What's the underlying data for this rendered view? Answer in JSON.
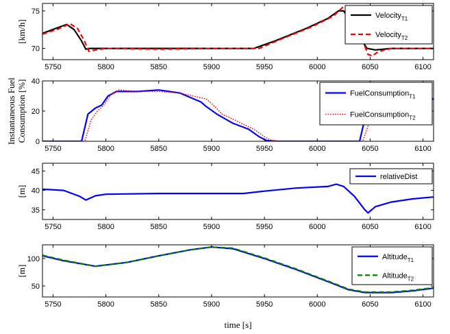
{
  "chart_data": [
    {
      "type": "line",
      "ylabel": "[km/h]",
      "xlabel": "",
      "xlim": [
        5740,
        6110
      ],
      "ylim": [
        68.5,
        76
      ],
      "xticks": [
        5750,
        5800,
        5850,
        5900,
        5950,
        6000,
        6050,
        6100
      ],
      "yticks": [
        70,
        75
      ],
      "legend_position": "top-right",
      "series": [
        {
          "name": "Velocity",
          "name_sub": "T1",
          "color": "#000000",
          "dash": "solid",
          "x": [
            5740,
            5755,
            5763,
            5770,
            5777,
            5781,
            5785,
            5800,
            5850,
            5900,
            5940,
            5960,
            5990,
            6010,
            6020,
            6025,
            6032,
            6040,
            6047,
            6055,
            6070,
            6110
          ],
          "y": [
            72.0,
            72.8,
            73.2,
            72.5,
            71.0,
            69.9,
            70.0,
            70.0,
            70.0,
            70.0,
            70.0,
            71.0,
            72.7,
            74.0,
            75.0,
            75.0,
            73.5,
            71.5,
            70.0,
            69.8,
            70.0,
            70.0
          ]
        },
        {
          "name": "Velocity",
          "name_sub": "T2",
          "color": "#ff0000",
          "dash": "dashed",
          "x": [
            5740,
            5755,
            5766,
            5773,
            5779,
            5784,
            5790,
            5800,
            5850,
            5900,
            5945,
            5965,
            5995,
            6015,
            6025,
            6028,
            6035,
            6043,
            6048,
            6052,
            6058,
            6070,
            6110
          ],
          "y": [
            71.9,
            72.6,
            73.3,
            72.7,
            71.2,
            69.6,
            69.8,
            70.0,
            69.9,
            70.0,
            70.0,
            71.2,
            72.9,
            74.3,
            75.6,
            75.6,
            74.0,
            71.0,
            69.2,
            69.0,
            69.6,
            70.0,
            70.0
          ]
        }
      ]
    },
    {
      "type": "line",
      "ylabel": "Instantaneous Fuel\nConsumption [%]",
      "xlabel": "",
      "xlim": [
        5740,
        6110
      ],
      "ylim": [
        0,
        40
      ],
      "xticks": [
        5750,
        5800,
        5850,
        5900,
        5950,
        6000,
        6050,
        6100
      ],
      "yticks": [
        0,
        20,
        40
      ],
      "legend_position": "top-right",
      "series": [
        {
          "name": "FuelConsumption",
          "name_sub": "T1",
          "color": "#0000ff",
          "dash": "solid",
          "x": [
            5740,
            5777,
            5783,
            5790,
            5796,
            5802,
            5810,
            5830,
            5850,
            5870,
            5890,
            5895,
            5905,
            5920,
            5935,
            5945,
            5952,
            5960,
            6000,
            6040,
            6045,
            6050,
            6057,
            6065,
            6080,
            6095,
            6100,
            6110
          ],
          "y": [
            0,
            0,
            18,
            22,
            24,
            30,
            33,
            33,
            34,
            32,
            26,
            23,
            18,
            12,
            8,
            3,
            0.5,
            0,
            0,
            0,
            15,
            24,
            19,
            22,
            23,
            24,
            30,
            28
          ]
        },
        {
          "name": "FuelConsumption",
          "name_sub": "T2",
          "color": "#ff0000",
          "dash": "dotted",
          "x": [
            5740,
            5780,
            5786,
            5792,
            5798,
            5805,
            5812,
            5830,
            5850,
            5870,
            5895,
            5900,
            5910,
            5925,
            5940,
            5950,
            5955,
            5965,
            6000,
            6043,
            6048,
            6053,
            6060,
            6068,
            6080,
            6095,
            6103,
            6110
          ],
          "y": [
            0,
            0,
            14,
            20,
            24,
            31,
            34,
            33,
            33,
            32,
            28,
            25,
            18,
            13,
            8,
            3,
            1,
            0,
            0,
            0,
            10,
            18,
            20,
            22,
            23,
            24,
            29,
            27
          ]
        }
      ]
    },
    {
      "type": "line",
      "ylabel": "[m]",
      "xlabel": "",
      "xlim": [
        5740,
        6110
      ],
      "ylim": [
        32.5,
        47
      ],
      "xticks": [
        5750,
        5800,
        5850,
        5900,
        5950,
        6000,
        6050,
        6100
      ],
      "yticks": [
        35,
        40,
        45
      ],
      "legend_position": "top-right",
      "series": [
        {
          "name": "relativeDist",
          "name_sub": "",
          "color": "#0000ff",
          "dash": "solid",
          "x": [
            5740,
            5760,
            5775,
            5781,
            5790,
            5800,
            5850,
            5900,
            5930,
            5950,
            5980,
            6010,
            6018,
            6025,
            6035,
            6045,
            6048,
            6055,
            6070,
            6090,
            6110
          ],
          "y": [
            40.3,
            40.0,
            38.5,
            37.5,
            38.6,
            39.0,
            39.2,
            39.2,
            39.2,
            39.8,
            40.6,
            41.0,
            41.6,
            41.0,
            38.5,
            35.0,
            34.2,
            35.8,
            37.0,
            37.8,
            38.3
          ]
        }
      ]
    },
    {
      "type": "line",
      "ylabel": "[m]",
      "xlabel": "time [s]",
      "xlim": [
        5740,
        6110
      ],
      "ylim": [
        30,
        125
      ],
      "xticks": [
        5750,
        5800,
        5850,
        5900,
        5950,
        6000,
        6050,
        6100
      ],
      "yticks": [
        50,
        100
      ],
      "legend_position": "top-right",
      "series": [
        {
          "name": "Altitude",
          "name_sub": "T1",
          "color": "#0000ff",
          "dash": "solid",
          "x": [
            5740,
            5760,
            5790,
            5820,
            5850,
            5880,
            5900,
            5920,
            5950,
            5980,
            6010,
            6030,
            6045,
            6070,
            6090,
            6110
          ],
          "y": [
            105,
            96,
            86,
            93,
            105,
            116,
            121,
            118,
            100,
            80,
            58,
            43,
            38,
            38,
            41,
            46
          ]
        },
        {
          "name": "Altitude",
          "name_sub": "T2",
          "color": "#008000",
          "dash": "dashed",
          "x": [
            5740,
            5760,
            5790,
            5820,
            5850,
            5880,
            5900,
            5920,
            5950,
            5980,
            6010,
            6030,
            6045,
            6070,
            6090,
            6110
          ],
          "y": [
            106,
            97,
            86,
            93,
            105,
            116,
            121,
            119,
            101,
            81,
            59,
            44,
            39,
            39,
            42,
            47
          ]
        }
      ]
    }
  ]
}
